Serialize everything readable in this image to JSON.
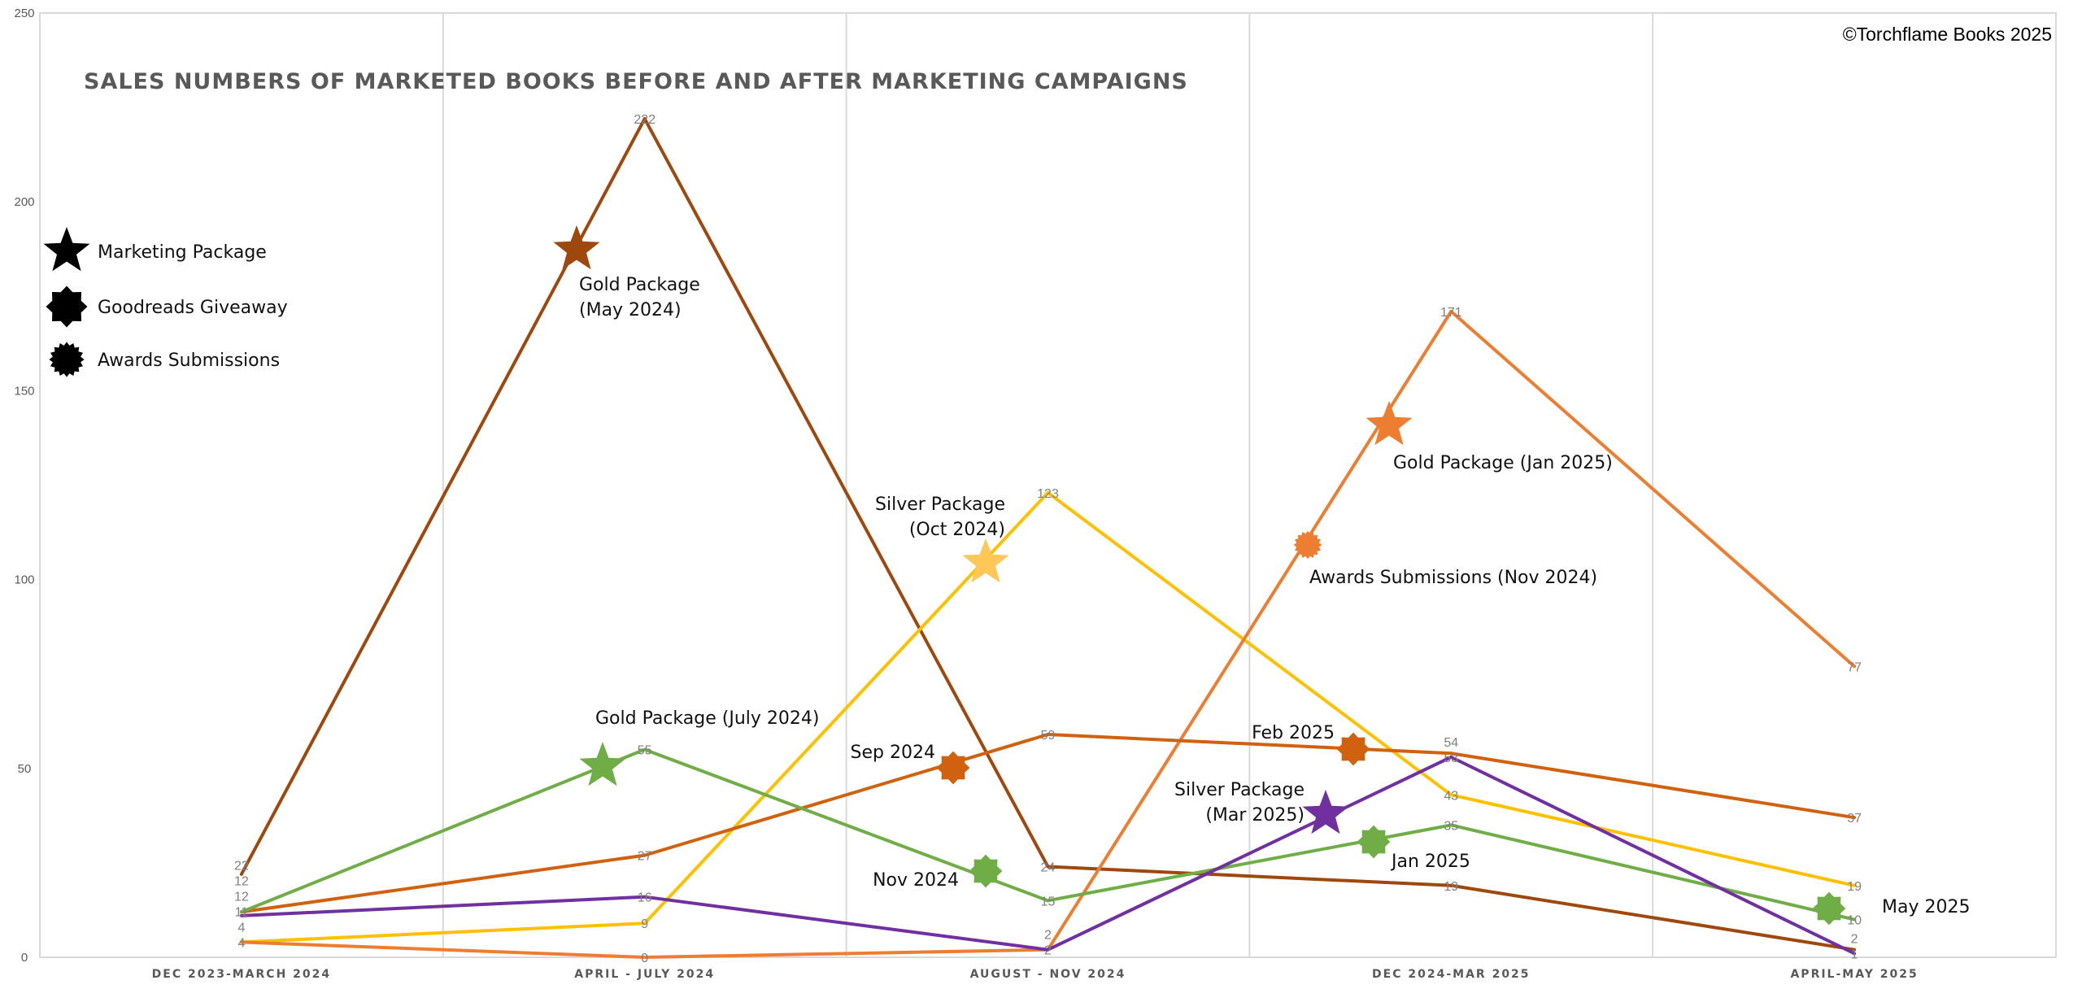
{
  "chart_data": {
    "type": "line",
    "title": "SALES NUMBERS OF MARKETED BOOKS BEFORE AND AFTER MARKETING CAMPAIGNS",
    "copyright": "©Torchflame Books 2025",
    "categories": [
      "DEC 2023-MARCH 2024",
      "APRIL - JULY 2024",
      "AUGUST - NOV 2024",
      "DEC 2024-MAR 2025",
      "APRIL-MAY 2025"
    ],
    "ylim": [
      0,
      250
    ],
    "yticks": [
      0,
      50,
      100,
      150,
      200,
      250
    ],
    "grid": "vertical",
    "series": [
      {
        "color": "#9E480E",
        "values": [
          22,
          222,
          24,
          19,
          2
        ]
      },
      {
        "color": "#FFC000",
        "values": [
          4,
          9,
          123,
          43,
          19
        ]
      },
      {
        "color": "#ED7D31",
        "values": [
          4,
          0,
          2,
          171,
          77
        ]
      },
      {
        "color": "#D0620F",
        "values": [
          12,
          27,
          59,
          54,
          37
        ]
      },
      {
        "color": "#70AD47",
        "values": [
          12,
          55,
          15,
          35,
          10
        ]
      },
      {
        "color": "#7030A0",
        "values": [
          11,
          16,
          2,
          53,
          1
        ]
      }
    ],
    "legend": {
      "placement": "left",
      "items": [
        {
          "shape": "star",
          "label": "Marketing Package"
        },
        {
          "shape": "eight-point-star",
          "label": "Goodreads Giveaway"
        },
        {
          "shape": "sunburst",
          "label": "Awards Submissions"
        }
      ]
    },
    "annotations": [
      {
        "shape": "star",
        "color": "#9E480E",
        "lines": [
          "Gold Package",
          "(May 2024)"
        ]
      },
      {
        "shape": "star",
        "color": "#70AD47",
        "lines": [
          "Gold Package (July 2024)"
        ]
      },
      {
        "shape": "eight-point-star",
        "color": "#D0620F",
        "lines": [
          "Sep 2024"
        ]
      },
      {
        "shape": "eight-point-star",
        "color": "#70AD47",
        "lines": [
          "Nov 2024"
        ]
      },
      {
        "shape": "star",
        "color": "#FFC658",
        "lines": [
          "Silver Package",
          "(Oct 2024)"
        ]
      },
      {
        "shape": "sunburst",
        "color": "#ED7D31",
        "lines": [
          "Awards Submissions (Nov 2024)"
        ]
      },
      {
        "shape": "star",
        "color": "#ED7D31",
        "lines": [
          "Gold Package (Jan 2025)"
        ]
      },
      {
        "shape": "eight-point-star",
        "color": "#D0620F",
        "lines": [
          "Feb 2025"
        ]
      },
      {
        "shape": "star",
        "color": "#7030A0",
        "lines": [
          "Silver Package",
          "(Mar 2025)"
        ]
      },
      {
        "shape": "eight-point-star",
        "color": "#70AD47",
        "lines": [
          "Jan 2025"
        ]
      },
      {
        "shape": "eight-point-star",
        "color": "#70AD47",
        "lines": [
          "May 2025"
        ]
      }
    ]
  }
}
